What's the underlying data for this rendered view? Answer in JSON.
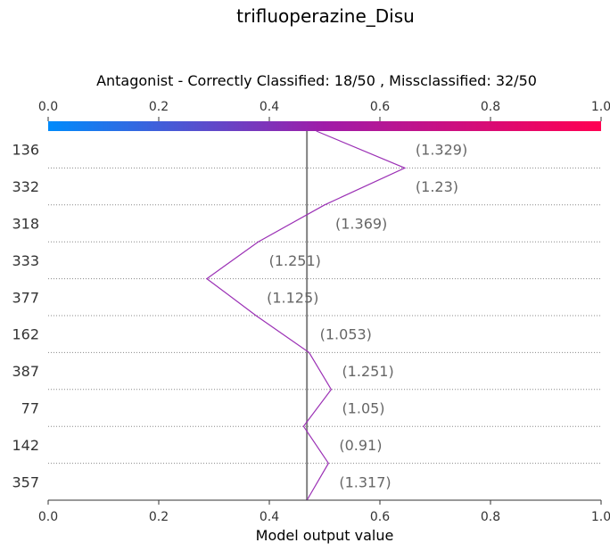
{
  "chart_data": {
    "type": "line",
    "title": "trifluoperazine_Disu",
    "subtitle": "Antagonist - Correctly Classified: 18/50 , Missclassified: 32/50",
    "xlabel": "Model output value",
    "xlim": [
      0.0,
      1.0
    ],
    "ticks": [
      "0.0",
      "0.2",
      "0.4",
      "0.6",
      "0.8",
      "1.0"
    ],
    "tick_values": [
      0.0,
      0.2,
      0.4,
      0.6,
      0.8,
      1.0
    ],
    "base_value": 0.468,
    "features": [
      "136",
      "332",
      "318",
      "333",
      "377",
      "162",
      "387",
      "77",
      "142",
      "357"
    ],
    "feature_values": [
      "(1.329)",
      "(1.23)",
      "(1.369)",
      "(1.251)",
      "(1.125)",
      "(1.053)",
      "(1.251)",
      "(1.05)",
      "(0.91)",
      "(1.317)"
    ],
    "path_x": [
      0.468,
      0.507,
      0.462,
      0.512,
      0.472,
      0.376,
      0.287,
      0.38,
      0.5,
      0.645,
      0.485
    ],
    "colorbar": {
      "low_color": "#008bfb",
      "mid_color": "#a01ca8",
      "high_color": "#ff0052"
    },
    "line_color": "#9b30b5",
    "base_line_color": "#808080"
  }
}
